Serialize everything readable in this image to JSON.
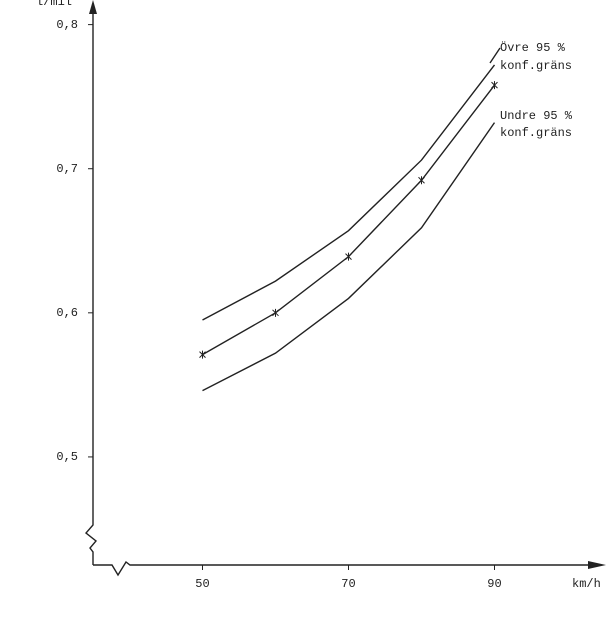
{
  "chart_data": {
    "type": "line",
    "y_label": "l/mil",
    "x_label": "km/h",
    "x": [
      50,
      60,
      70,
      80,
      90
    ],
    "series": [
      {
        "color": "#222222",
        "values": [
          0.595,
          0.622,
          0.657,
          0.706,
          0.772
        ],
        "marker": false
      },
      {
        "color": "#222222",
        "values": [
          0.571,
          0.6,
          0.639,
          0.692,
          0.758
        ],
        "marker": true
      },
      {
        "color": "#222222",
        "values": [
          0.546,
          0.572,
          0.61,
          0.659,
          0.732
        ],
        "marker": false
      }
    ],
    "annotations": [
      [
        "Övre 95 %",
        "konf.gräns"
      ],
      [
        "Undre 95 %",
        "konf.gräns"
      ]
    ],
    "xlim": [
      35,
      105
    ],
    "ylim": [
      0.425,
      0.815
    ],
    "xticks": [
      50,
      70,
      90
    ],
    "yticks": [
      {
        "value": 0.8,
        "label": "0,8"
      },
      {
        "value": 0.7,
        "label": "0,7"
      },
      {
        "value": 0.6,
        "label": "0,6"
      },
      {
        "value": 0.5,
        "label": "0,5"
      }
    ]
  }
}
